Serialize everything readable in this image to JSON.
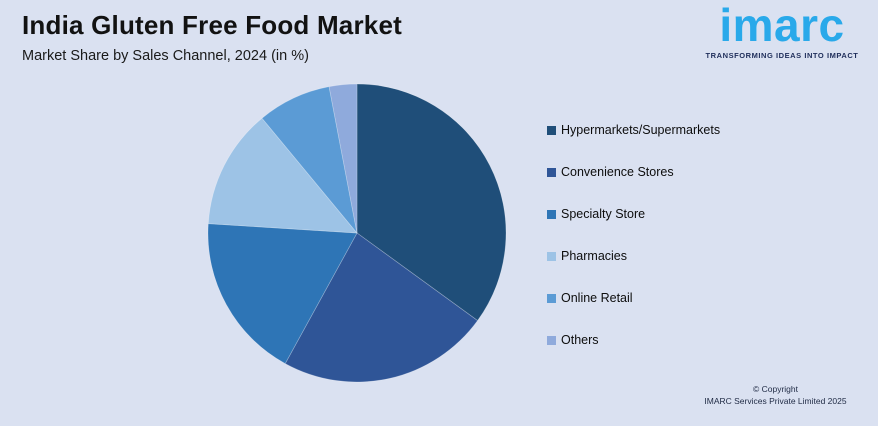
{
  "header": {
    "title": "India Gluten Free Food Market",
    "subtitle": "Market Share by Sales Channel, 2024 (in %)"
  },
  "logo": {
    "brand": "imarc",
    "tagline": "TRANSFORMING IDEAS INTO IMPACT",
    "brand_color": "#29A9EA",
    "tagline_color": "#1E2D5A"
  },
  "chart_data": {
    "type": "pie",
    "title": "India Gluten Free Food Market",
    "subtitle": "Market Share by Sales Channel, 2024 (in %)",
    "unit": "%",
    "start_angle_deg": 0,
    "direction": "clockwise",
    "legend_position": "right",
    "labels": [
      "Hypermarkets/Supermarkets",
      "Convenience Stores",
      "Specialty Store",
      "Pharmacies",
      "Online Retail",
      "Others"
    ],
    "values": [
      35,
      23,
      18,
      13,
      8,
      3
    ],
    "colors": [
      "#1F4E79",
      "#2F5597",
      "#2E75B6",
      "#9DC3E6",
      "#5B9BD5",
      "#8FAADC"
    ]
  },
  "footer": {
    "copyright_line1": "© Copyright",
    "copyright_line2": "IMARC Services Private Limited 2025"
  },
  "theme": {
    "background": "#DAE1F1",
    "text_color": "#1A1A1A"
  }
}
